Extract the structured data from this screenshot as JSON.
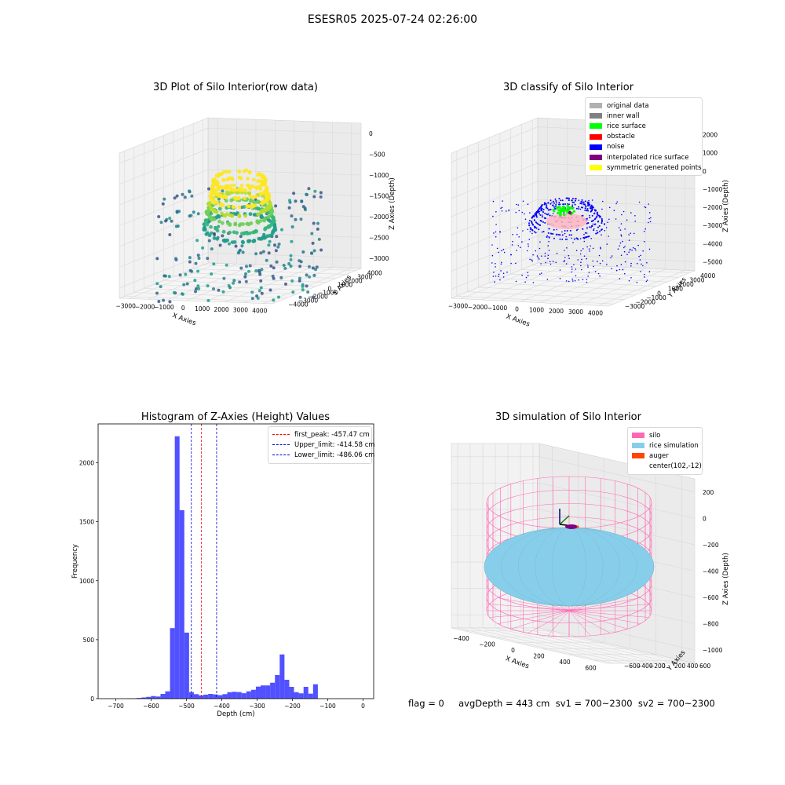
{
  "suptitle": "ESESR05 2025-07-24 02:26:00",
  "colors": {
    "hist_bar": "#4848ff",
    "first_peak": "#ff0000",
    "limits": "#0000cc",
    "silo": "#ff69b4",
    "rice": "#87ceeb",
    "auger": "#ff4500"
  },
  "chart_data": [
    {
      "type": "scatter",
      "projection": "3d",
      "title": "3D Plot of Silo Interior(row data)",
      "xlabel": "X Axies",
      "ylabel": "Y Axies",
      "zlabel": "Z Axies (Depth)",
      "xticks": [
        "−3000",
        "−2000",
        "−1000",
        "0",
        "1000",
        "2000",
        "3000",
        "4000"
      ],
      "yticks": [
        "−4000",
        "−3000",
        "−2000",
        "−1000",
        "0",
        "1000",
        "2000",
        "3000",
        "4000"
      ],
      "zticks": [
        "0",
        "−500",
        "−1000",
        "−1500",
        "−2000",
        "−2500",
        "−3000"
      ],
      "xlim": [
        -3500,
        4300
      ],
      "ylim": [
        -4300,
        4300
      ],
      "zlim": [
        -3200,
        100
      ],
      "colormap": "viridis"
    },
    {
      "type": "scatter",
      "projection": "3d",
      "title": "3D classify of Silo Interior",
      "xlabel": "X Axies",
      "ylabel": "Y Axies",
      "zlabel": "Z Axies (Depth)",
      "xticks": [
        "−3000",
        "−2000",
        "−1000",
        "0",
        "1000",
        "2000",
        "3000",
        "4000"
      ],
      "yticks": [
        "−3000",
        "−2000",
        "−1000",
        "0",
        "1000",
        "2000",
        "3000",
        "4000"
      ],
      "zticks": [
        "2000",
        "1000",
        "0",
        "−1000",
        "−2000",
        "−3000",
        "−4000",
        "−5000"
      ],
      "legend": [
        {
          "label": "original data",
          "color": "#b0b0b0"
        },
        {
          "label": "inner wall",
          "color": "#808080"
        },
        {
          "label": "rice surface",
          "color": "#00ff00"
        },
        {
          "label": "obstacle",
          "color": "#ff0000"
        },
        {
          "label": "noise",
          "color": "#0000ff"
        },
        {
          "label": "interpolated rice surface",
          "color": "#800080"
        },
        {
          "label": "symmetric generated points",
          "color": "#ffff00"
        }
      ],
      "legend_position": "top-right"
    },
    {
      "type": "bar",
      "title": "Histogram of Z-Axies (Height) Values",
      "xlabel": "Depth (cm)",
      "ylabel": "Frequency",
      "xlim": [
        -750,
        30
      ],
      "ylim": [
        0,
        2330
      ],
      "xticks": [
        -700,
        -600,
        -500,
        -400,
        -300,
        -200,
        -100,
        0
      ],
      "xtick_labels": [
        "−700",
        "−600",
        "−500",
        "−400",
        "−300",
        "−200",
        "−100",
        "0"
      ],
      "yticks": [
        0,
        500,
        1000,
        1500,
        2000
      ],
      "bin_edges_start": -722,
      "bin_width": 13.5,
      "values": [
        1,
        0,
        0,
        0,
        2,
        3,
        6,
        10,
        15,
        22,
        18,
        40,
        62,
        598,
        2225,
        1598,
        560,
        55,
        38,
        28,
        34,
        40,
        36,
        30,
        38,
        55,
        58,
        56,
        46,
        62,
        75,
        102,
        112,
        112,
        135,
        200,
        375,
        160,
        100,
        55,
        45,
        100,
        42,
        122
      ],
      "vlines": [
        {
          "label": "first_peak: -457.47 cm",
          "x": -457.47,
          "color": "#ff0000"
        },
        {
          "label": "Upper_limit: -414.58 cm",
          "x": -414.58,
          "color": "#0000cc"
        },
        {
          "label": "Lower_limit: -486.06 cm",
          "x": -486.06,
          "color": "#0000cc"
        }
      ],
      "legend_position": "top-right"
    },
    {
      "type": "surface",
      "projection": "3d",
      "title": "3D simulation of Silo Interior",
      "xlabel": "X Axies",
      "ylabel": "Y Axies",
      "zlabel": "Z Axies (Depth)",
      "xticks": [
        "−400",
        "−200",
        "0",
        "200",
        "400",
        "600"
      ],
      "yticks": [
        "−600",
        "−400",
        "−200",
        "0",
        "200",
        "400",
        "600"
      ],
      "zticks": [
        "200",
        "0",
        "−200",
        "−400",
        "−600",
        "−800",
        "−1000"
      ],
      "legend": [
        {
          "label": "silo",
          "color": "#ff69b4"
        },
        {
          "label": "rice simulation",
          "color": "#87ceeb"
        },
        {
          "label": "auger",
          "color": "#ff4500"
        },
        {
          "label": "center(102,-12)",
          "color": ""
        }
      ],
      "legend_position": "top-right"
    }
  ],
  "footer": "flag = 0     avgDepth = 443 cm  sv1 = 700~2300  sv2 = 700~2300"
}
